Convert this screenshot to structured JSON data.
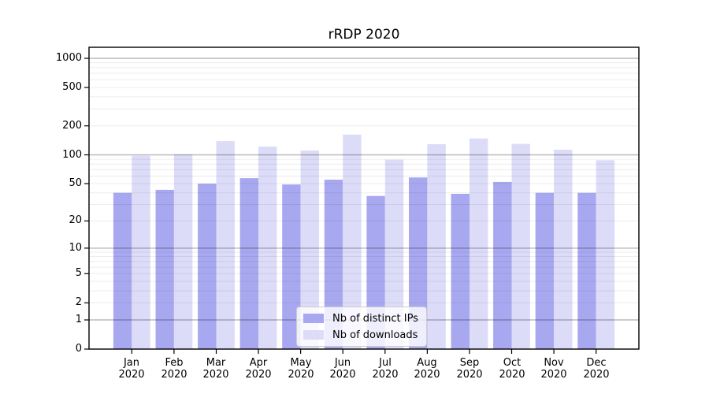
{
  "figure": {
    "title": "rRDP 2020"
  },
  "chart_data": {
    "type": "bar",
    "title": "rRDP 2020",
    "categories": [
      "Jan",
      "Feb",
      "Mar",
      "Apr",
      "May",
      "Jun",
      "Jul",
      "Aug",
      "Sep",
      "Oct",
      "Nov",
      "Dec"
    ],
    "category_year": "2020",
    "series": [
      {
        "name": "Nb of distinct IPs",
        "color": "#a8a8f0",
        "values": [
          40,
          43,
          50,
          57,
          49,
          55,
          37,
          58,
          39,
          52,
          40,
          40
        ]
      },
      {
        "name": "Nb of downloads",
        "color": "#dcdcf8",
        "values": [
          98,
          101,
          139,
          122,
          111,
          162,
          89,
          129,
          148,
          130,
          113,
          88
        ]
      }
    ],
    "yscale": "symlog-log1p",
    "y_ticks": [
      0,
      1,
      2,
      5,
      10,
      20,
      50,
      100,
      200,
      500,
      1000
    ],
    "y_major_gridlines": [
      1,
      10,
      100,
      1000
    ],
    "ylim": [
      0,
      1300
    ],
    "xlabel": "",
    "ylabel": "",
    "grid": "on",
    "legend_position": "inside lower center",
    "colors": {
      "major_grid": "rgba(0,0,0,0.27)",
      "minor_grid": "rgba(0,0,0,0.075)",
      "axis": "#000000",
      "background": "#ffffff",
      "text": "#000000"
    }
  },
  "legend": {
    "entries": [
      {
        "label": "Nb of distinct IPs",
        "color": "#a8a8f0"
      },
      {
        "label": "Nb of downloads",
        "color": "#dcdcf8"
      }
    ]
  }
}
